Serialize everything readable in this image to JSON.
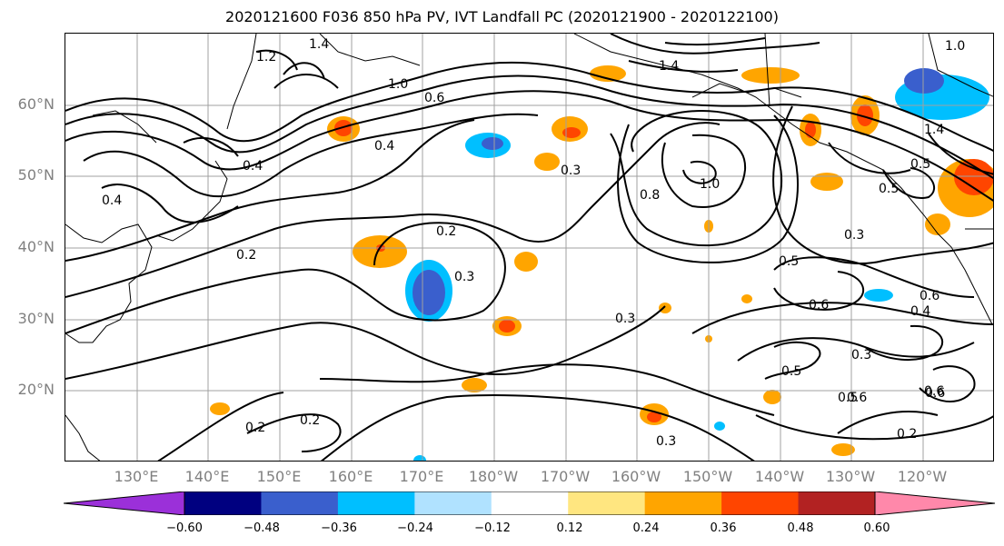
{
  "title": "2020121600 F036 850 hPa PV, IVT Landfall PC (2020121900 - 2020122100)",
  "lat_labels": [
    "60°N",
    "50°N",
    "40°N",
    "30°N",
    "20°N"
  ],
  "lon_labels": [
    "130°E",
    "140°E",
    "150°E",
    "160°E",
    "170°E",
    "180°W",
    "170°W",
    "160°W",
    "150°W",
    "140°W",
    "130°W",
    "120°W"
  ],
  "colorbar": {
    "ticks": [
      "−0.60",
      "−0.48",
      "−0.36",
      "−0.24",
      "−0.12",
      "0.12",
      "0.24",
      "0.36",
      "0.48",
      "0.60"
    ],
    "colors": [
      "#9b30d9",
      "#000080",
      "#3a5fcd",
      "#00bfff",
      "#b0e2ff",
      "#ffffff",
      "#ffe680",
      "#ffa500",
      "#ff4500",
      "#b22222",
      "#ff88aa"
    ]
  },
  "contour_labels": [
    "1.4",
    "1.2",
    "1.0",
    "0.6",
    "0.4",
    "0.4",
    "1.4",
    "0.4",
    "0.8",
    "1.0",
    "0.3",
    "0.2",
    "0.2",
    "0.3",
    "0.3",
    "0.2",
    "0.2",
    "0.3",
    "0.5",
    "0.6",
    "0.5",
    "0.6",
    "0.3",
    "0.5",
    "0.6",
    "0.6",
    "0.2",
    "0.4",
    "0.3",
    "1.0",
    "0.5",
    "1.4",
    "0.6",
    "0.5"
  ],
  "map_extent": {
    "lon_min": 120,
    "lon_max": 250,
    "lat_min": 10,
    "lat_max": 70
  }
}
